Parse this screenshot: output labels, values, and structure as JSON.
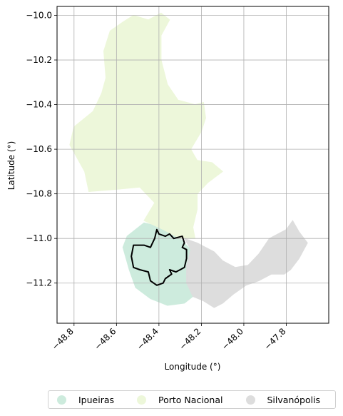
{
  "map": {
    "xlabel": "Longitude (°)",
    "ylabel": "Latitude (°)",
    "xlim": [
      -48.88,
      -47.6
    ],
    "ylim": [
      -11.38,
      -9.96
    ],
    "xticks": [
      {
        "value": -48.8,
        "label": "−48.8"
      },
      {
        "value": -48.6,
        "label": "−48.6"
      },
      {
        "value": -48.4,
        "label": "−48.4"
      },
      {
        "value": -48.2,
        "label": "−48.2"
      },
      {
        "value": -48.0,
        "label": "−48.0"
      },
      {
        "value": -47.8,
        "label": "−47.8"
      }
    ],
    "yticks": [
      {
        "value": -10.0,
        "label": "−10.0"
      },
      {
        "value": -10.2,
        "label": "−10.2"
      },
      {
        "value": -10.4,
        "label": "−10.4"
      },
      {
        "value": -10.6,
        "label": "−10.6"
      },
      {
        "value": -10.8,
        "label": "−10.8"
      },
      {
        "value": -11.0,
        "label": "−11.0"
      },
      {
        "value": -11.2,
        "label": "−11.2"
      }
    ],
    "grid": true,
    "legend_placement": "bottom-center",
    "regions": [
      {
        "name": "Ipueiras",
        "color": "#cdebdd",
        "outline": [
          [
            -48.47,
            -10.93
          ],
          [
            -48.38,
            -10.95
          ],
          [
            -48.3,
            -11.0
          ],
          [
            -48.25,
            -11.05
          ],
          [
            -48.27,
            -11.12
          ],
          [
            -48.27,
            -11.2
          ],
          [
            -48.24,
            -11.26
          ],
          [
            -48.28,
            -11.29
          ],
          [
            -48.36,
            -11.3
          ],
          [
            -48.44,
            -11.27
          ],
          [
            -48.51,
            -11.22
          ],
          [
            -48.54,
            -11.14
          ],
          [
            -48.57,
            -11.04
          ],
          [
            -48.55,
            -10.99
          ],
          [
            -48.51,
            -10.96
          ]
        ]
      },
      {
        "name": "Porto Nacional",
        "color": "#edf7da",
        "outline": [
          [
            -48.52,
            -10.0
          ],
          [
            -48.45,
            -10.02
          ],
          [
            -48.39,
            -9.99
          ],
          [
            -48.35,
            -10.02
          ],
          [
            -48.39,
            -10.09
          ],
          [
            -48.39,
            -10.2
          ],
          [
            -48.36,
            -10.31
          ],
          [
            -48.31,
            -10.38
          ],
          [
            -48.23,
            -10.4
          ],
          [
            -48.19,
            -10.39
          ],
          [
            -48.18,
            -10.46
          ],
          [
            -48.2,
            -10.52
          ],
          [
            -48.25,
            -10.6
          ],
          [
            -48.22,
            -10.65
          ],
          [
            -48.15,
            -10.66
          ],
          [
            -48.1,
            -10.7
          ],
          [
            -48.17,
            -10.75
          ],
          [
            -48.22,
            -10.8
          ],
          [
            -48.22,
            -10.87
          ],
          [
            -48.24,
            -10.95
          ],
          [
            -48.23,
            -11.0
          ],
          [
            -48.3,
            -11.0
          ],
          [
            -48.38,
            -10.96
          ],
          [
            -48.47,
            -10.92
          ],
          [
            -48.42,
            -10.84
          ],
          [
            -48.49,
            -10.77
          ],
          [
            -48.6,
            -10.78
          ],
          [
            -48.73,
            -10.79
          ],
          [
            -48.75,
            -10.7
          ],
          [
            -48.82,
            -10.58
          ],
          [
            -48.8,
            -10.5
          ],
          [
            -48.71,
            -10.43
          ],
          [
            -48.67,
            -10.35
          ],
          [
            -48.65,
            -10.28
          ],
          [
            -48.66,
            -10.16
          ],
          [
            -48.63,
            -10.07
          ],
          [
            -48.57,
            -10.03
          ]
        ]
      },
      {
        "name": "Silvanópolis",
        "color": "#dddddd",
        "outline": [
          [
            -48.28,
            -11.0
          ],
          [
            -48.22,
            -11.02
          ],
          [
            -48.14,
            -11.06
          ],
          [
            -48.1,
            -11.1
          ],
          [
            -48.04,
            -11.13
          ],
          [
            -47.98,
            -11.12
          ],
          [
            -47.93,
            -11.07
          ],
          [
            -47.88,
            -11.0
          ],
          [
            -47.8,
            -10.96
          ],
          [
            -47.77,
            -10.92
          ],
          [
            -47.74,
            -10.97
          ],
          [
            -47.7,
            -11.02
          ],
          [
            -47.74,
            -11.09
          ],
          [
            -47.78,
            -11.14
          ],
          [
            -47.81,
            -11.16
          ],
          [
            -47.87,
            -11.16
          ],
          [
            -47.93,
            -11.19
          ],
          [
            -47.99,
            -11.21
          ],
          [
            -48.05,
            -11.25
          ],
          [
            -48.1,
            -11.29
          ],
          [
            -48.14,
            -11.31
          ],
          [
            -48.19,
            -11.28
          ],
          [
            -48.24,
            -11.26
          ],
          [
            -48.27,
            -11.2
          ],
          [
            -48.27,
            -11.12
          ],
          [
            -48.25,
            -11.05
          ]
        ]
      }
    ],
    "boundary": {
      "color": "#000000",
      "points": [
        [
          -48.41,
          -10.96
        ],
        [
          -48.4,
          -10.98
        ],
        [
          -48.37,
          -10.99
        ],
        [
          -48.35,
          -10.98
        ],
        [
          -48.33,
          -11.0
        ],
        [
          -48.29,
          -10.99
        ],
        [
          -48.28,
          -11.02
        ],
        [
          -48.29,
          -11.04
        ],
        [
          -48.27,
          -11.05
        ],
        [
          -48.27,
          -11.09
        ],
        [
          -48.28,
          -11.13
        ],
        [
          -48.3,
          -11.14
        ],
        [
          -48.32,
          -11.15
        ],
        [
          -48.35,
          -11.14
        ],
        [
          -48.34,
          -11.16
        ],
        [
          -48.37,
          -11.18
        ],
        [
          -48.38,
          -11.2
        ],
        [
          -48.41,
          -11.21
        ],
        [
          -48.44,
          -11.19
        ],
        [
          -48.45,
          -11.15
        ],
        [
          -48.49,
          -11.14
        ],
        [
          -48.52,
          -11.13
        ],
        [
          -48.53,
          -11.08
        ],
        [
          -48.52,
          -11.03
        ],
        [
          -48.47,
          -11.03
        ],
        [
          -48.44,
          -11.04
        ],
        [
          -48.43,
          -11.02
        ],
        [
          -48.42,
          -11.0
        ]
      ]
    },
    "legend": [
      {
        "label": "Ipueiras",
        "color": "#cdebdd"
      },
      {
        "label": "Porto Nacional",
        "color": "#edf7da"
      },
      {
        "label": "Silvanópolis",
        "color": "#dddddd"
      }
    ]
  }
}
